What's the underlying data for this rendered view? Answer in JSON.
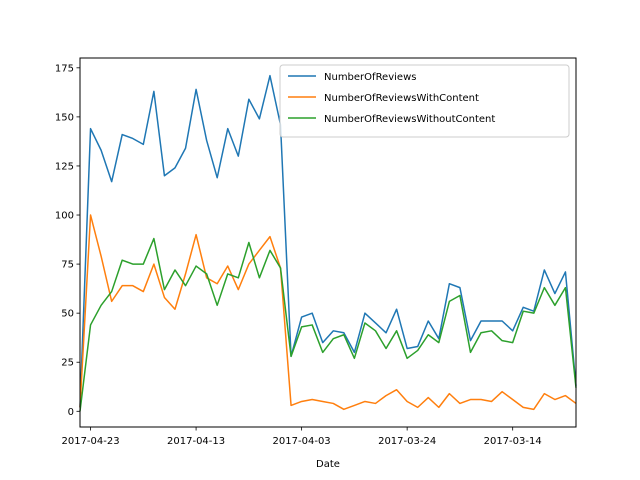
{
  "chart_data": {
    "type": "line",
    "title": "",
    "xlabel": "Date",
    "ylabel": "",
    "ylim": [
      -8,
      180
    ],
    "yticks": [
      0,
      25,
      50,
      75,
      100,
      125,
      150,
      175
    ],
    "x_tick_labels": [
      "2017-04-23",
      "2017-04-13",
      "2017-04-03",
      "2017-03-24",
      "2017-03-14"
    ],
    "x_tick_indices": [
      1,
      11,
      21,
      31,
      41
    ],
    "x": [
      "2017-04-24",
      "2017-04-23",
      "2017-04-22",
      "2017-04-21",
      "2017-04-20",
      "2017-04-19",
      "2017-04-18",
      "2017-04-17",
      "2017-04-16",
      "2017-04-15",
      "2017-04-14",
      "2017-04-13",
      "2017-04-12",
      "2017-04-11",
      "2017-04-10",
      "2017-04-09",
      "2017-04-08",
      "2017-04-07",
      "2017-04-06",
      "2017-04-05",
      "2017-04-04",
      "2017-04-03",
      "2017-04-02",
      "2017-04-01",
      "2017-03-31",
      "2017-03-30",
      "2017-03-29",
      "2017-03-28",
      "2017-03-27",
      "2017-03-26",
      "2017-03-25",
      "2017-03-24",
      "2017-03-23",
      "2017-03-22",
      "2017-03-21",
      "2017-03-20",
      "2017-03-19",
      "2017-03-18",
      "2017-03-17",
      "2017-03-16",
      "2017-03-15",
      "2017-03-14",
      "2017-03-13",
      "2017-03-12",
      "2017-03-11",
      "2017-03-10",
      "2017-03-09",
      "2017-03-08"
    ],
    "legend_position": "top-right",
    "series": [
      {
        "name": "NumberOfReviews",
        "color": "#1f77b4",
        "values": [
          2,
          144,
          133,
          117,
          141,
          139,
          136,
          163,
          120,
          124,
          134,
          164,
          138,
          119,
          144,
          130,
          159,
          149,
          171,
          146,
          28,
          48,
          50,
          35,
          41,
          40,
          30,
          50,
          45,
          40,
          52,
          32,
          33,
          46,
          37,
          65,
          63,
          36,
          46,
          46,
          46,
          41,
          53,
          51,
          72,
          60,
          71,
          13
        ]
      },
      {
        "name": "NumberOfReviewsWithContent",
        "color": "#ff7f0e",
        "values": [
          2,
          100,
          79,
          56,
          64,
          64,
          61,
          75,
          58,
          52,
          70,
          90,
          68,
          65,
          74,
          62,
          75,
          82,
          89,
          73,
          3,
          5,
          6,
          5,
          4,
          1,
          3,
          5,
          4,
          8,
          11,
          5,
          2,
          7,
          2,
          9,
          4,
          6,
          6,
          5,
          10,
          6,
          2,
          1,
          9,
          6,
          8,
          4
        ]
      },
      {
        "name": "NumberOfReviewsWithoutContent",
        "color": "#2ca02c",
        "values": [
          0,
          44,
          54,
          61,
          77,
          75,
          75,
          88,
          62,
          72,
          64,
          74,
          70,
          54,
          70,
          68,
          86,
          68,
          82,
          73,
          28,
          43,
          44,
          30,
          37,
          39,
          27,
          45,
          41,
          32,
          41,
          27,
          31,
          39,
          35,
          56,
          59,
          30,
          40,
          41,
          36,
          35,
          51,
          50,
          63,
          54,
          63,
          12
        ]
      }
    ]
  }
}
